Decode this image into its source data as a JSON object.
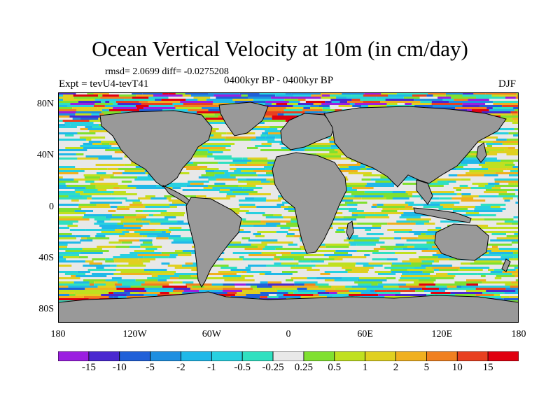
{
  "title": "Ocean Vertical Velocity at 10m (in cm/day)",
  "stats": "rmsd= 2.0699 diff= -0.0275208",
  "experiment": "Expt = tevU4-tevT41",
  "period": "0400kyr BP - 0400kyr BP",
  "season": "DJF",
  "lat_ticks": [
    {
      "label": "80N",
      "lat": 80
    },
    {
      "label": "40N",
      "lat": 40
    },
    {
      "label": "0",
      "lat": 0
    },
    {
      "label": "40S",
      "lat": -40
    },
    {
      "label": "80S",
      "lat": -80
    }
  ],
  "lon_ticks": [
    {
      "label": "180",
      "lon": -180
    },
    {
      "label": "120W",
      "lon": -120
    },
    {
      "label": "60W",
      "lon": -60
    },
    {
      "label": "0",
      "lon": 0
    },
    {
      "label": "60E",
      "lon": 60
    },
    {
      "label": "120E",
      "lon": 120
    },
    {
      "label": "180",
      "lon": 180
    }
  ],
  "colorbar": {
    "levels": [
      "-15",
      "-10",
      "-5",
      "-2",
      "-1",
      "-0.5",
      "-0.25",
      "0.25",
      "0.5",
      "1",
      "2",
      "5",
      "10",
      "15"
    ],
    "colors": [
      "#9b1fe0",
      "#4a28d0",
      "#2060d8",
      "#1f8fe0",
      "#20b8e8",
      "#28d0e0",
      "#30e0c0",
      "#e8e8e8",
      "#80e030",
      "#c0e020",
      "#e0d020",
      "#f0b020",
      "#f08020",
      "#e84020",
      "#e00010"
    ]
  },
  "colors": {
    "land": "#999999",
    "coast": "#000000",
    "background": "#ffffff"
  }
}
